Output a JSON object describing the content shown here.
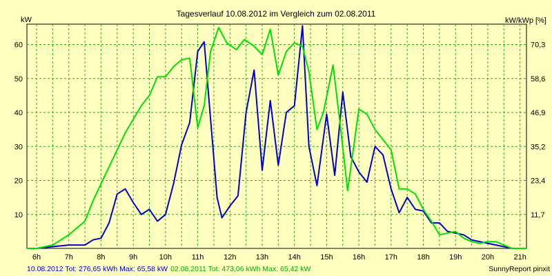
{
  "chart_data": {
    "type": "line",
    "title": "Tagesverlauf 10.08.2012 im Vergleich zum 02.08.2011",
    "y_left_label": "kW",
    "y_right_label": "kW/kWp [%]",
    "y_ticks": [
      "10",
      "20",
      "30",
      "40",
      "50",
      "60"
    ],
    "y_right_ticks": [
      "11,7",
      "23,4",
      "35,2",
      "46,9",
      "58,6",
      "70,3"
    ],
    "x_ticks": [
      "6h",
      "7h",
      "8h",
      "9h",
      "10h",
      "11h",
      "12h",
      "13h",
      "14h",
      "15h",
      "16h",
      "17h",
      "18h",
      "19h",
      "20h",
      "21h"
    ],
    "xlim": [
      5.7,
      21.2
    ],
    "ylim": [
      0,
      66
    ],
    "grid": true,
    "series": [
      {
        "name": "10.08.2012",
        "color": "#0000cc",
        "x": [
          5.7,
          6.0,
          6.5,
          7.0,
          7.5,
          7.75,
          8.0,
          8.25,
          8.5,
          8.75,
          9.0,
          9.25,
          9.5,
          9.75,
          10.0,
          10.25,
          10.5,
          10.75,
          11.0,
          11.2,
          11.4,
          11.6,
          11.75,
          12.0,
          12.25,
          12.5,
          12.75,
          13.0,
          13.25,
          13.5,
          13.75,
          14.0,
          14.25,
          14.45,
          14.7,
          15.0,
          15.25,
          15.5,
          15.75,
          16.0,
          16.25,
          16.5,
          16.75,
          17.0,
          17.25,
          17.5,
          17.75,
          18.0,
          18.25,
          18.5,
          18.75,
          19.0,
          19.25,
          19.5,
          19.75,
          20.0,
          20.25,
          20.5,
          20.75,
          21.0,
          21.2
        ],
        "y": [
          0,
          0,
          0.5,
          1,
          1,
          2.5,
          3,
          7.5,
          16,
          17.5,
          13.5,
          10,
          11.5,
          8,
          10,
          19,
          30.5,
          37,
          58,
          60.8,
          38,
          15,
          9,
          12.5,
          15.5,
          40,
          52.5,
          23,
          43.5,
          24.5,
          40,
          42,
          65.5,
          30,
          18.5,
          39.5,
          21.5,
          46,
          27,
          22.5,
          19.5,
          30,
          27.5,
          17.5,
          10.5,
          15,
          11.5,
          11,
          7.5,
          7.5,
          5,
          4.5,
          4,
          2.5,
          2,
          1.5,
          1,
          0.5,
          0,
          0,
          0
        ]
      },
      {
        "name": "02.08.2011",
        "color": "#00e000",
        "x": [
          5.7,
          6.0,
          6.5,
          7.0,
          7.5,
          7.75,
          8.0,
          8.25,
          8.5,
          8.75,
          9.0,
          9.25,
          9.5,
          9.75,
          10.0,
          10.25,
          10.5,
          10.75,
          11.0,
          11.2,
          11.4,
          11.65,
          11.9,
          12.2,
          12.45,
          12.75,
          13.0,
          13.25,
          13.5,
          13.75,
          14.0,
          14.25,
          14.45,
          14.7,
          14.9,
          15.2,
          15.4,
          15.65,
          16.0,
          16.25,
          16.5,
          16.75,
          17.0,
          17.25,
          17.5,
          17.75,
          18.0,
          18.25,
          18.5,
          18.75,
          19.0,
          19.25,
          19.5,
          19.75,
          20.0,
          20.25,
          20.5,
          20.75,
          21.0,
          21.2
        ],
        "y": [
          0,
          0,
          1,
          4,
          8,
          14,
          19,
          24,
          29,
          34,
          38,
          42,
          45,
          50.5,
          50.5,
          53.5,
          55.5,
          56,
          35.5,
          42,
          58,
          65,
          60.5,
          58.5,
          61.5,
          59.5,
          57,
          64.5,
          51,
          58,
          60.5,
          59.5,
          52,
          35,
          40,
          54,
          38,
          17,
          41,
          39.5,
          35,
          32,
          29,
          17.5,
          17.5,
          16,
          11.5,
          8,
          4,
          4.5,
          5,
          3,
          2,
          1.5,
          2,
          2,
          1,
          0,
          0,
          0
        ]
      }
    ]
  },
  "footer": {
    "left": "10.08.2012 Tot: 276,65 kWh Max: 65,58 kW",
    "right_colored": "02.08.2011 Tot: 473,06 kWh Max: 65,42 kW",
    "brand": "SunnyReport pinxit"
  }
}
